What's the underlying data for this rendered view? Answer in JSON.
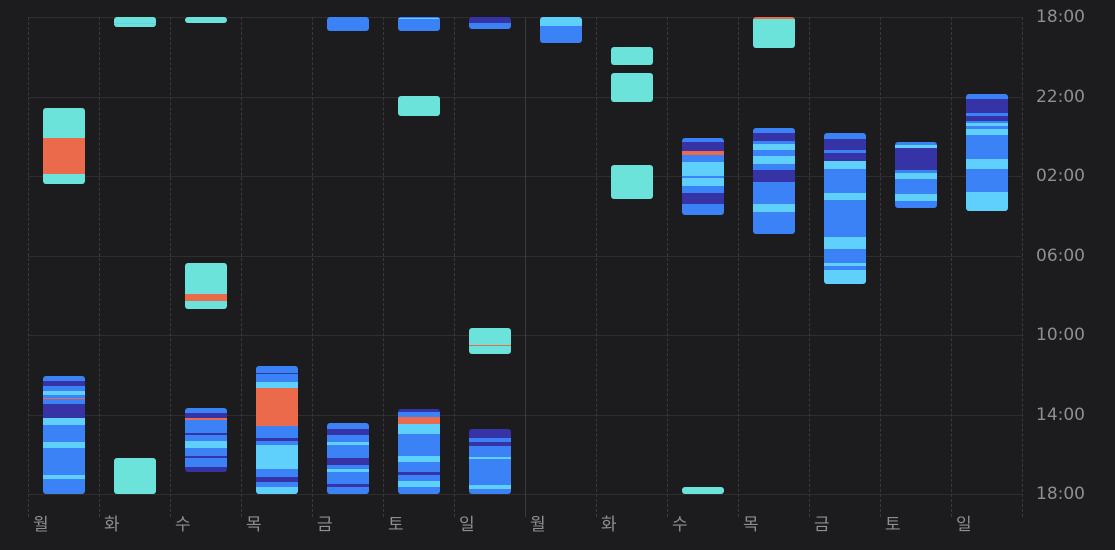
{
  "chart_data": {
    "type": "sleep-stage-timeline",
    "title": "",
    "y_axis": {
      "unit": "minutes since 18:00",
      "range": [
        0,
        1440
      ],
      "tick_labels": [
        "18:00",
        "22:00",
        "02:00",
        "06:00",
        "10:00",
        "14:00",
        "18:00"
      ],
      "position": "right"
    },
    "x_axis": {
      "tick_labels": [
        "월",
        "화",
        "수",
        "목",
        "금",
        "토",
        "일",
        "월",
        "화",
        "수",
        "목",
        "금",
        "토",
        "일"
      ]
    },
    "week_separators_after": [
      6,
      13
    ],
    "stage_colors": {
      "b": "#6ce3da",
      "a": "#ec6a4c",
      "r": "#5fd0fb",
      "c": "#3a82f6",
      "d": "#3633a6"
    },
    "stage_names": {
      "b": "in-bed",
      "a": "awake",
      "r": "rem",
      "c": "core",
      "d": "deep"
    },
    "days": [
      {
        "label": "월",
        "blocks": [
          [
            [
              276,
              366,
              "b"
            ],
            [
              366,
              474,
              "a"
            ],
            [
              474,
              504,
              "b"
            ]
          ],
          [
            [
              1083,
              1098,
              "c"
            ],
            [
              1098,
              1113,
              "d"
            ],
            [
              1113,
              1128,
              "c"
            ],
            [
              1128,
              1140,
              "r"
            ],
            [
              1140,
              1149,
              "c"
            ],
            [
              1149,
              1152,
              "a"
            ],
            [
              1152,
              1167,
              "c"
            ],
            [
              1167,
              1212,
              "d"
            ],
            [
              1212,
              1233,
              "r"
            ],
            [
              1233,
              1284,
              "c"
            ],
            [
              1284,
              1302,
              "r"
            ],
            [
              1302,
              1383,
              "c"
            ],
            [
              1383,
              1395,
              "r"
            ],
            [
              1395,
              1440,
              "c"
            ]
          ]
        ]
      },
      {
        "label": "화",
        "blocks": [
          [
            [
              0,
              18,
              "b"
            ],
            [
              18,
              21,
              "r"
            ],
            [
              21,
              30,
              "b"
            ]
          ],
          [
            [
              1332,
              1440,
              "b"
            ]
          ]
        ]
      },
      {
        "label": "수",
        "blocks": [
          [
            [
              0,
              18,
              "b"
            ]
          ],
          [
            [
              744,
              837,
              "b"
            ],
            [
              837,
              858,
              "a"
            ],
            [
              858,
              882,
              "b"
            ]
          ],
          [
            [
              1179,
              1197,
              "c"
            ],
            [
              1197,
              1212,
              "d"
            ],
            [
              1212,
              1218,
              "a"
            ],
            [
              1218,
              1257,
              "c"
            ],
            [
              1257,
              1263,
              "d"
            ],
            [
              1263,
              1281,
              "c"
            ],
            [
              1281,
              1302,
              "r"
            ],
            [
              1302,
              1326,
              "c"
            ],
            [
              1326,
              1332,
              "d"
            ],
            [
              1332,
              1359,
              "c"
            ],
            [
              1359,
              1374,
              "d"
            ]
          ]
        ]
      },
      {
        "label": "목",
        "blocks": [
          [
            [
              1053,
              1074,
              "c"
            ],
            [
              1074,
              1077,
              "d"
            ],
            [
              1077,
              1101,
              "c"
            ],
            [
              1101,
              1119,
              "r"
            ],
            [
              1119,
              1236,
              "a"
            ],
            [
              1236,
              1272,
              "c"
            ],
            [
              1272,
              1281,
              "d"
            ],
            [
              1281,
              1293,
              "c"
            ],
            [
              1293,
              1365,
              "r"
            ],
            [
              1365,
              1389,
              "c"
            ],
            [
              1389,
              1404,
              "d"
            ],
            [
              1404,
              1419,
              "c"
            ],
            [
              1419,
              1440,
              "r"
            ]
          ]
        ]
      },
      {
        "label": "금",
        "blocks": [
          [
            [
              0,
              42,
              "c"
            ]
          ],
          [
            [
              1227,
              1245,
              "c"
            ],
            [
              1245,
              1263,
              "d"
            ],
            [
              1263,
              1284,
              "c"
            ],
            [
              1284,
              1293,
              "r"
            ],
            [
              1293,
              1332,
              "c"
            ],
            [
              1332,
              1353,
              "d"
            ],
            [
              1353,
              1365,
              "c"
            ],
            [
              1365,
              1374,
              "r"
            ],
            [
              1374,
              1410,
              "c"
            ],
            [
              1410,
              1419,
              "d"
            ],
            [
              1419,
              1440,
              "c"
            ]
          ]
        ]
      },
      {
        "label": "토",
        "blocks": [
          [
            [
              0,
              3,
              "c"
            ],
            [
              3,
              6,
              "r"
            ],
            [
              6,
              42,
              "c"
            ]
          ],
          [
            [
              237,
              300,
              "b"
            ]
          ],
          [
            [
              1182,
              1191,
              "d"
            ],
            [
              1191,
              1209,
              "c"
            ],
            [
              1209,
              1230,
              "a"
            ],
            [
              1230,
              1260,
              "r"
            ],
            [
              1260,
              1326,
              "c"
            ],
            [
              1326,
              1344,
              "r"
            ],
            [
              1344,
              1374,
              "c"
            ],
            [
              1374,
              1383,
              "d"
            ],
            [
              1383,
              1401,
              "c"
            ],
            [
              1401,
              1419,
              "r"
            ],
            [
              1419,
              1440,
              "c"
            ]
          ]
        ]
      },
      {
        "label": "일",
        "blocks": [
          [
            [
              0,
              18,
              "d"
            ],
            [
              18,
              36,
              "c"
            ]
          ],
          [
            [
              939,
              990,
              "b"
            ],
            [
              990,
              993,
              "a"
            ],
            [
              993,
              1017,
              "b"
            ]
          ],
          [
            [
              1245,
              1272,
              "d"
            ],
            [
              1272,
              1284,
              "c"
            ],
            [
              1284,
              1296,
              "d"
            ],
            [
              1296,
              1329,
              "c"
            ],
            [
              1329,
              1335,
              "r"
            ],
            [
              1335,
              1413,
              "c"
            ],
            [
              1413,
              1425,
              "r"
            ],
            [
              1425,
              1440,
              "c"
            ]
          ]
        ]
      },
      {
        "label": "월",
        "blocks": [
          [
            [
              0,
              27,
              "r"
            ],
            [
              27,
              78,
              "c"
            ]
          ]
        ]
      },
      {
        "label": "화",
        "blocks": [
          [
            [
              90,
              144,
              "b"
            ]
          ],
          [
            [
              168,
              258,
              "b"
            ]
          ],
          [
            [
              447,
              549,
              "b"
            ]
          ]
        ]
      },
      {
        "label": "수",
        "blocks": [
          [
            [
              366,
              378,
              "c"
            ],
            [
              378,
              405,
              "d"
            ],
            [
              405,
              417,
              "a"
            ],
            [
              417,
              438,
              "c"
            ],
            [
              438,
              480,
              "r"
            ],
            [
              480,
              486,
              "c"
            ],
            [
              486,
              510,
              "r"
            ],
            [
              510,
              531,
              "c"
            ],
            [
              531,
              564,
              "d"
            ],
            [
              564,
              597,
              "c"
            ]
          ],
          [
            [
              1419,
              1440,
              "b"
            ]
          ]
        ]
      },
      {
        "label": "목",
        "blocks": [
          [
            [
              0,
              6,
              "a"
            ],
            [
              6,
              93,
              "b"
            ]
          ],
          [
            [
              336,
              351,
              "c"
            ],
            [
              351,
              375,
              "d"
            ],
            [
              375,
              384,
              "c"
            ],
            [
              384,
              402,
              "r"
            ],
            [
              402,
              420,
              "c"
            ],
            [
              420,
              444,
              "r"
            ],
            [
              444,
              462,
              "c"
            ],
            [
              462,
              498,
              "d"
            ],
            [
              498,
              564,
              "c"
            ],
            [
              564,
              588,
              "r"
            ],
            [
              588,
              654,
              "c"
            ]
          ]
        ]
      },
      {
        "label": "금",
        "blocks": [
          [
            [
              351,
              369,
              "c"
            ],
            [
              369,
              402,
              "d"
            ],
            [
              402,
              411,
              "c"
            ],
            [
              411,
              435,
              "d"
            ],
            [
              435,
              459,
              "r"
            ],
            [
              459,
              531,
              "c"
            ],
            [
              531,
              552,
              "r"
            ],
            [
              552,
              663,
              "c"
            ],
            [
              663,
              699,
              "r"
            ],
            [
              699,
              744,
              "c"
            ],
            [
              744,
              753,
              "r"
            ],
            [
              753,
              765,
              "c"
            ],
            [
              765,
              807,
              "r"
            ]
          ]
        ]
      },
      {
        "label": "토",
        "blocks": [
          [
            [
              378,
              387,
              "c"
            ],
            [
              387,
              396,
              "r"
            ],
            [
              396,
              462,
              "d"
            ],
            [
              462,
              471,
              "c"
            ],
            [
              471,
              489,
              "r"
            ],
            [
              489,
              534,
              "c"
            ],
            [
              534,
              555,
              "r"
            ],
            [
              555,
              576,
              "c"
            ]
          ]
        ]
      },
      {
        "label": "일",
        "blocks": [
          [
            [
              231,
              249,
              "c"
            ],
            [
              249,
              291,
              "d"
            ],
            [
              291,
              300,
              "c"
            ],
            [
              300,
              315,
              "d"
            ],
            [
              315,
              321,
              "c"
            ],
            [
              321,
              330,
              "r"
            ],
            [
              330,
              339,
              "c"
            ],
            [
              339,
              357,
              "r"
            ],
            [
              357,
              429,
              "c"
            ],
            [
              429,
              459,
              "r"
            ],
            [
              459,
              528,
              "c"
            ],
            [
              528,
              585,
              "r"
            ]
          ]
        ]
      }
    ]
  }
}
